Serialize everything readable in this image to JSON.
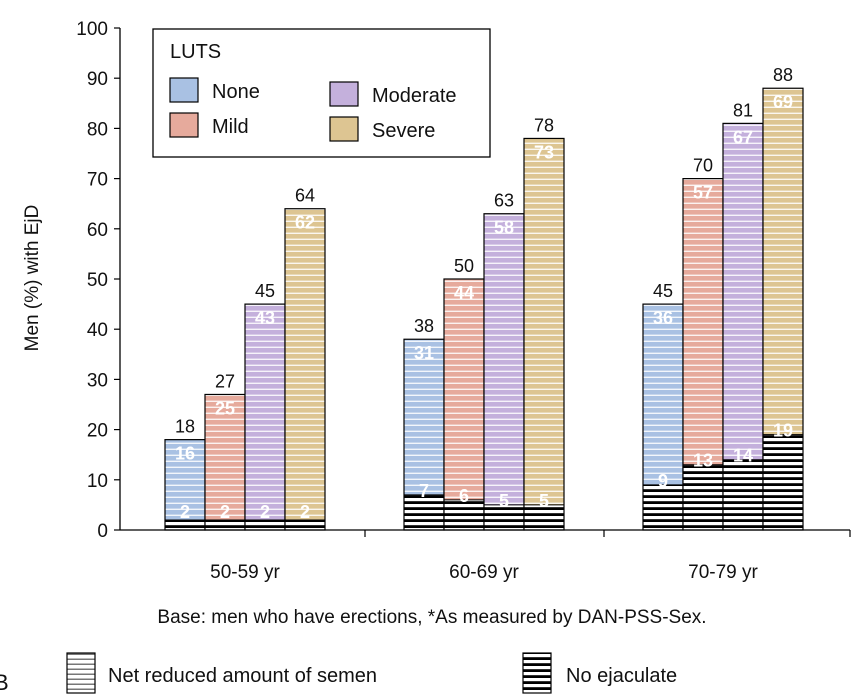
{
  "chart_data": {
    "type": "bar",
    "ylabel": "Men (%) with EjD",
    "ylim": [
      0,
      100
    ],
    "yticks": [
      0,
      10,
      20,
      30,
      40,
      50,
      60,
      70,
      80,
      90,
      100
    ],
    "categories": [
      "50-59 yr",
      "60-69 yr",
      "70-79 yr"
    ],
    "legend_title": "LUTS",
    "legend_placement": "top-left",
    "series": [
      {
        "name": "None",
        "color": "#a9c1e3",
        "totals": [
          18,
          38,
          45
        ],
        "reduced": [
          16,
          31,
          36
        ],
        "no_ejaculate": [
          2,
          7,
          9
        ]
      },
      {
        "name": "Mild",
        "color": "#e6aa9c",
        "totals": [
          27,
          50,
          70
        ],
        "reduced": [
          25,
          44,
          57
        ],
        "no_ejaculate": [
          2,
          6,
          13
        ]
      },
      {
        "name": "Moderate",
        "color": "#c4b0dc",
        "totals": [
          45,
          63,
          81
        ],
        "reduced": [
          43,
          58,
          67
        ],
        "no_ejaculate": [
          2,
          5,
          14
        ]
      },
      {
        "name": "Severe",
        "color": "#ddc592",
        "totals": [
          64,
          78,
          88
        ],
        "reduced": [
          62,
          73,
          69
        ],
        "no_ejaculate": [
          2,
          5,
          19
        ]
      }
    ],
    "footnote": "Base: men who have erections,  *As measured by DAN-PSS-Sex.",
    "pattern_legend": [
      "Net reduced amount of semen",
      "No ejaculate"
    ],
    "panel_letter": "B"
  }
}
